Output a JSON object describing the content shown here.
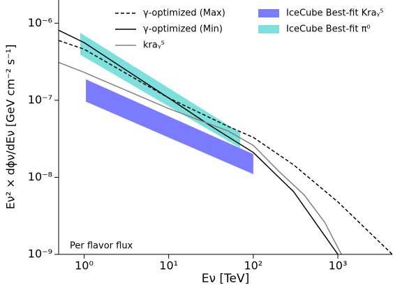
{
  "chart_data": {
    "type": "line",
    "x_label": "Eν [TeV]",
    "y_label": "Eν² × dϕν/dEν [GeV cm⁻² s⁻¹]",
    "annotation": "Per flavor flux",
    "log_x": true,
    "log_y": true,
    "xlim": [
      0.5,
      4400
    ],
    "ylim": [
      1e-09,
      2e-06
    ],
    "xticks": [
      {
        "value": 1,
        "label": "10⁰"
      },
      {
        "value": 10,
        "label": "10¹"
      },
      {
        "value": 100,
        "label": "10²"
      },
      {
        "value": 1000,
        "label": "10³"
      }
    ],
    "yticks": [
      {
        "value": 1e-09,
        "label": "10⁻⁹"
      },
      {
        "value": 1e-08,
        "label": "10⁻⁸"
      },
      {
        "value": 1e-07,
        "label": "10⁻⁷"
      },
      {
        "value": 1e-06,
        "label": "10⁻⁶"
      }
    ],
    "series": [
      {
        "name": "IceCube Best-fit Kraᵧ⁵",
        "kind": "band",
        "color": "#7b7bff",
        "x": [
          1.05,
          100
        ],
        "lower": [
          9.6e-08,
          1.1e-08
        ],
        "upper": [
          1.87e-07,
          2e-08
        ]
      },
      {
        "name": "IceCube Best-fit π⁰",
        "kind": "band",
        "color": "#7ee0dc",
        "x": [
          0.9,
          70
        ],
        "lower": [
          3.9e-07,
          2.4e-08
        ],
        "upper": [
          7.5e-07,
          3.8e-08
        ]
      },
      {
        "name": "γ-optimized (Max)",
        "kind": "line",
        "style": "dashed",
        "color": "#000000",
        "x": [
          0.5,
          1,
          10,
          50,
          100,
          300,
          1000,
          4400
        ],
        "values": [
          5.96e-07,
          4.6e-07,
          1.07e-07,
          4.6e-08,
          3.3e-08,
          1.45e-08,
          4.8e-09,
          1e-09
        ]
      },
      {
        "name": "γ-optimized (Min)",
        "kind": "line",
        "style": "solid",
        "color": "#000000",
        "x": [
          0.5,
          1,
          10,
          30,
          100,
          300,
          1000
        ],
        "values": [
          8.1e-07,
          5.6e-07,
          1.07e-07,
          4.8e-08,
          2.1e-08,
          6.5e-09,
          1e-09
        ]
      },
      {
        "name": "kraᵧ⁵",
        "kind": "line",
        "style": "solid",
        "color": "#808080",
        "x": [
          0.5,
          1,
          10,
          50,
          100,
          200,
          400,
          700,
          1100
        ],
        "values": [
          3.1e-07,
          2.3e-07,
          7.8e-08,
          4e-08,
          2.6e-08,
          1.2e-08,
          5.9e-09,
          2.6e-09,
          1e-09
        ]
      }
    ]
  }
}
